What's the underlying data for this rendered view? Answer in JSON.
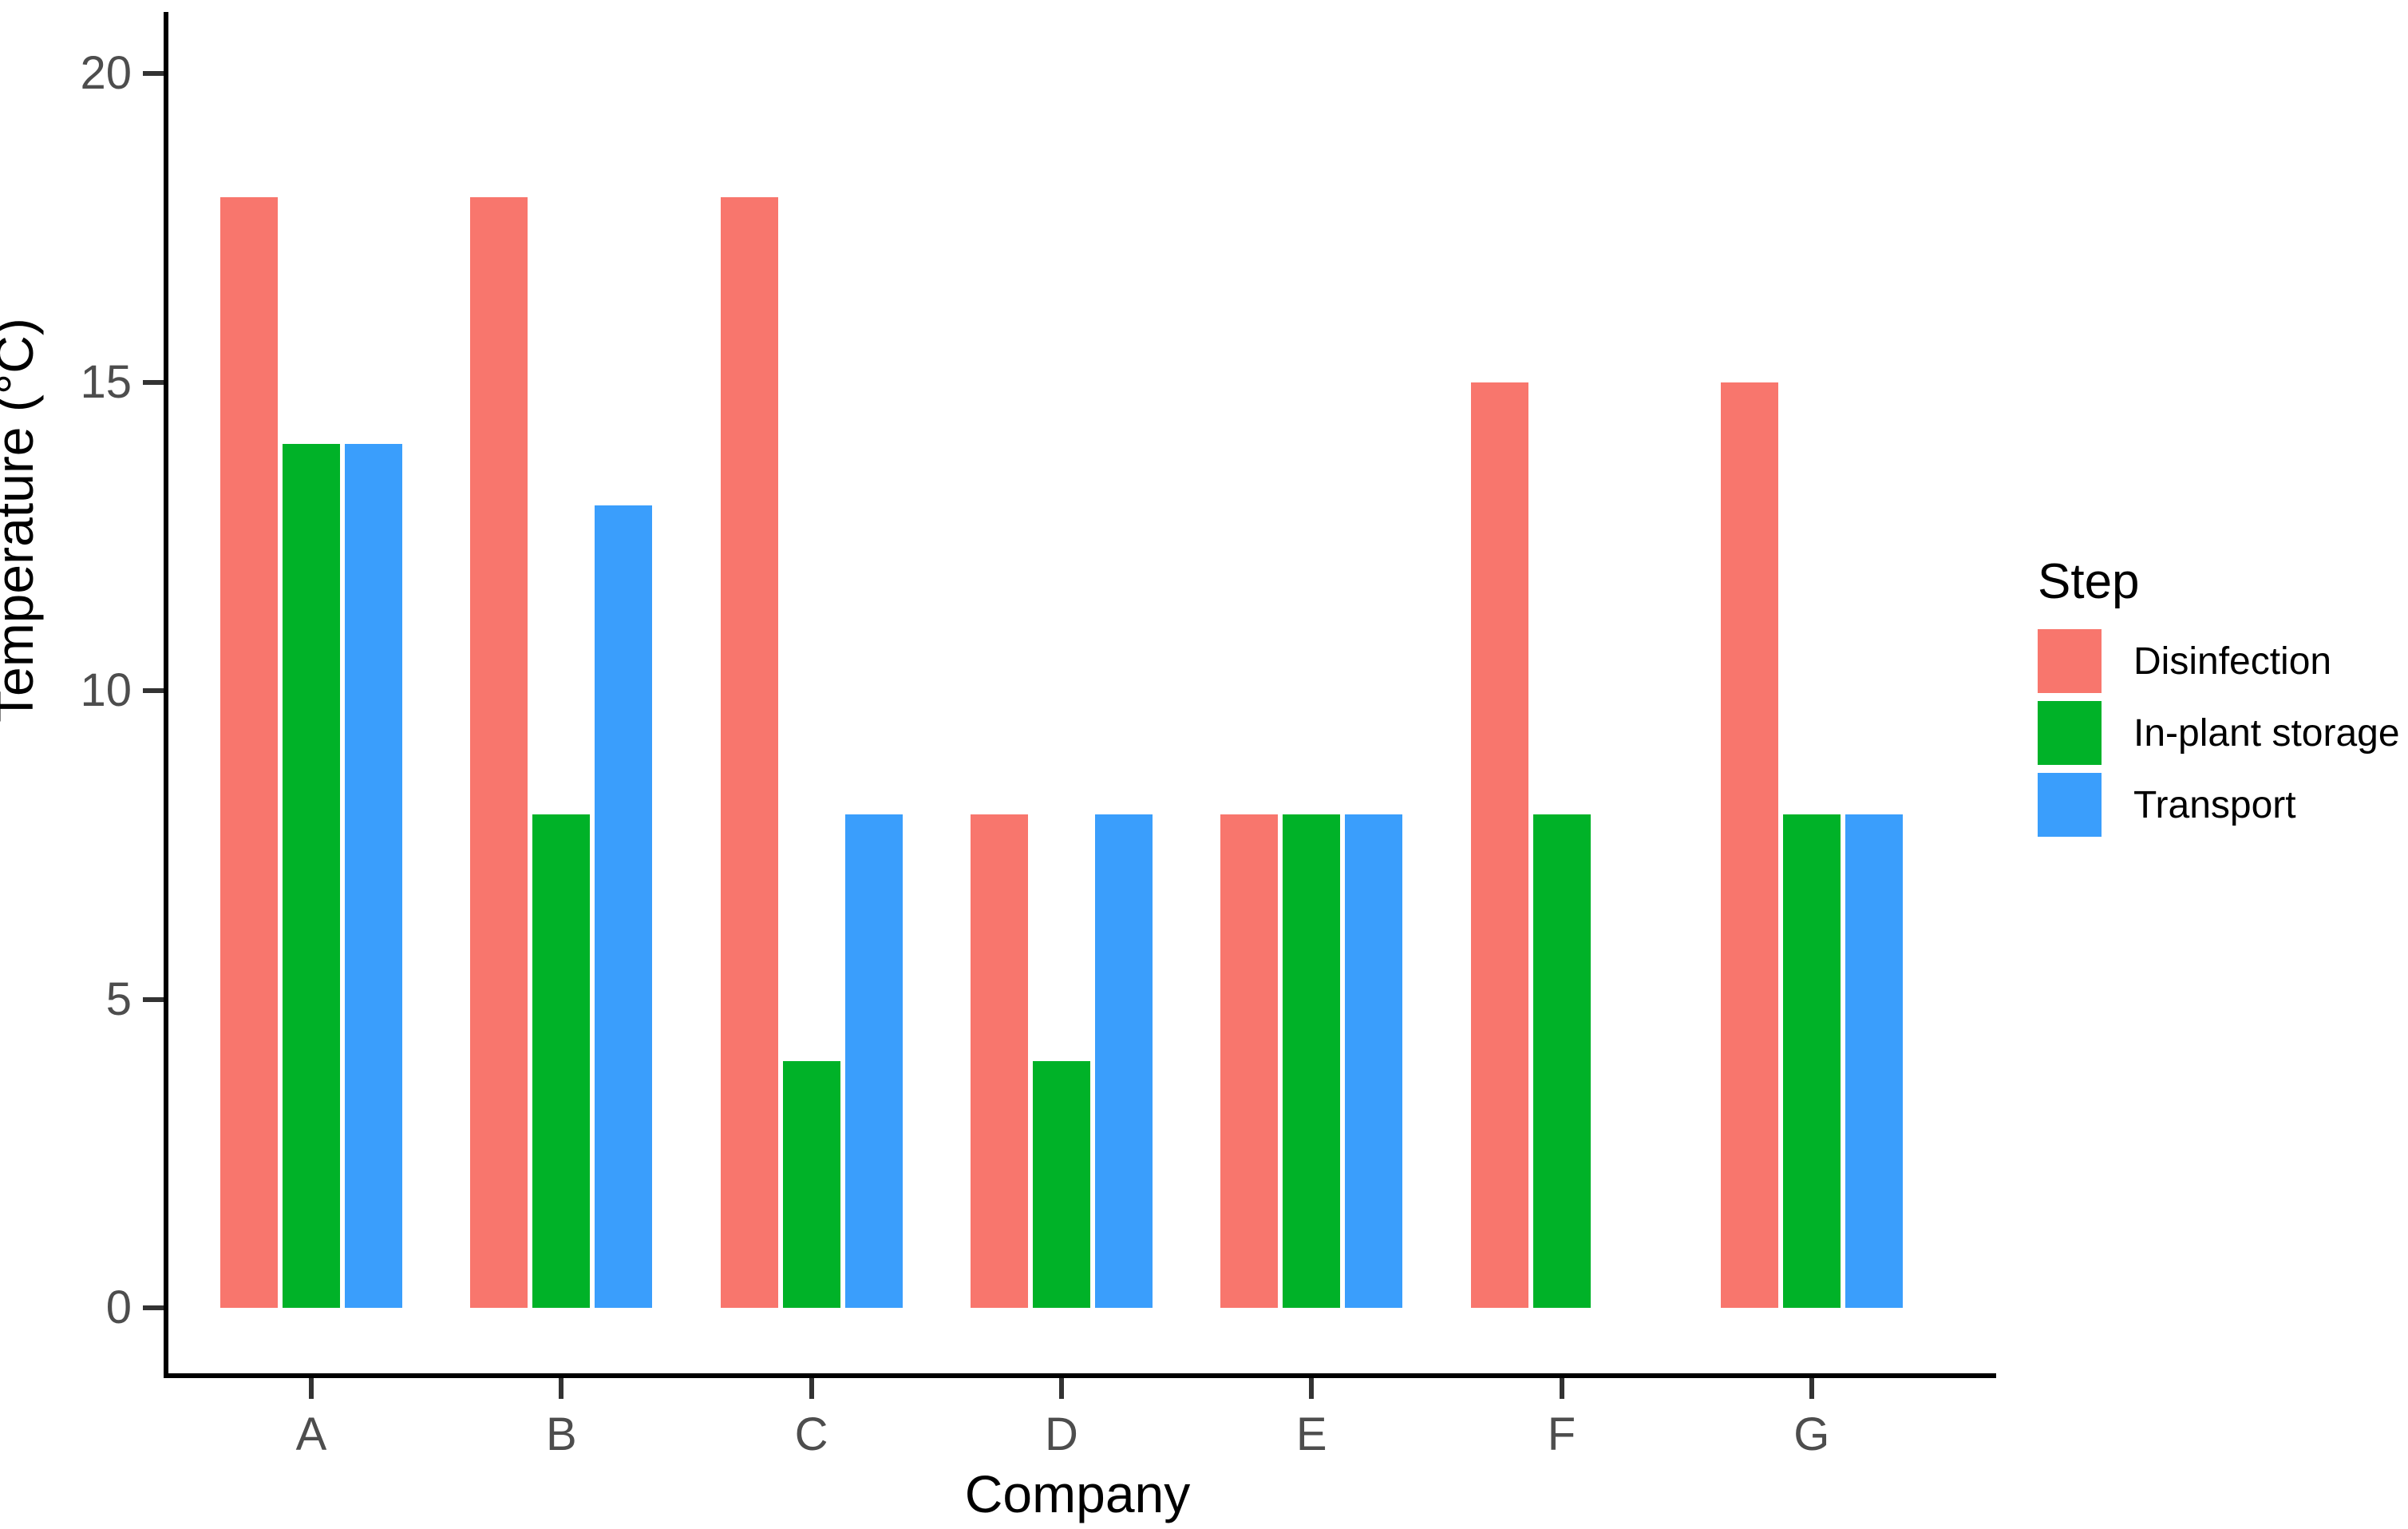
{
  "chart_data": {
    "type": "bar",
    "title": "",
    "xlabel": "Company",
    "ylabel": "Temperature (°C)",
    "categories": [
      "A",
      "B",
      "C",
      "D",
      "E",
      "F",
      "G"
    ],
    "series": [
      {
        "name": "Disinfection",
        "color": "#F8766D",
        "values": [
          18,
          18,
          18,
          8,
          8,
          15,
          15
        ]
      },
      {
        "name": "In-plant storage",
        "color": "#00B228",
        "values": [
          14,
          8,
          4,
          4,
          8,
          8,
          8
        ]
      },
      {
        "name": "Transport",
        "color": "#3A9EFC",
        "values": [
          14,
          13,
          8,
          8,
          8,
          null,
          8
        ]
      }
    ],
    "ylim": [
      0,
      20
    ],
    "yticks": [
      0,
      5,
      10,
      15,
      20
    ],
    "grid": "off",
    "legend_title": "Step",
    "legend_position": "right"
  }
}
